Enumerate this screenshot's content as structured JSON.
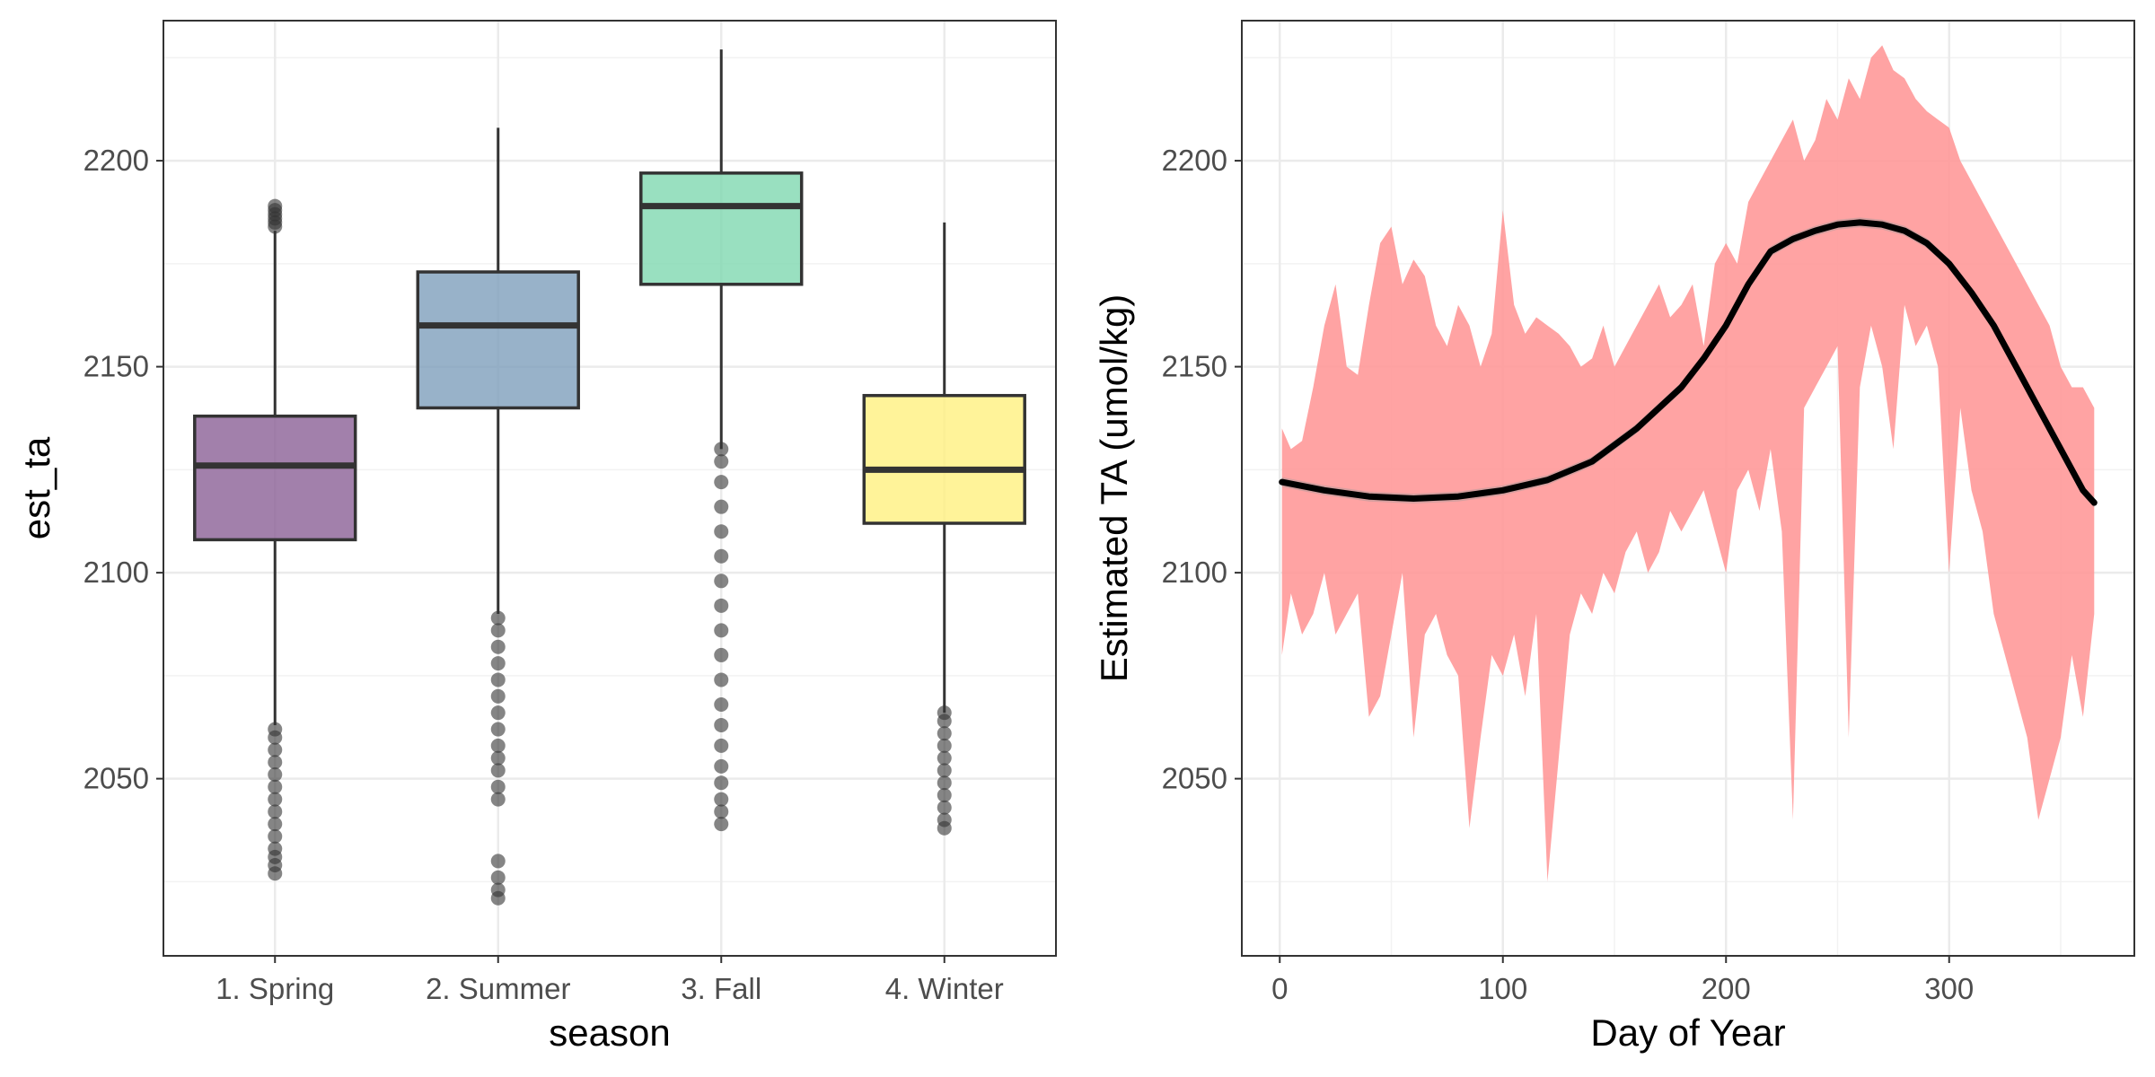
{
  "chart_data": [
    {
      "type": "boxplot",
      "xlabel": "season",
      "ylabel": "est_ta",
      "ylim": [
        2007,
        2234
      ],
      "yticks": [
        2050,
        2100,
        2150,
        2200
      ],
      "grid": true,
      "categories": [
        "1. Spring",
        "2. Summer",
        "3. Fall",
        "4. Winter"
      ],
      "fill_colors": [
        "#8b6096",
        "#7e9fbb",
        "#80d8b0",
        "#fff080"
      ],
      "boxes": [
        {
          "category": "1. Spring",
          "whisker_low": 2063,
          "q1": 2108,
          "median": 2126,
          "q3": 2138,
          "whisker_high": 2183,
          "outliers_high": [
            2184,
            2185,
            2186,
            2187,
            2188,
            2189
          ],
          "outliers_low": [
            2027,
            2029,
            2031,
            2033,
            2036,
            2039,
            2042,
            2045,
            2048,
            2051,
            2054,
            2057,
            2060,
            2062
          ]
        },
        {
          "category": "2. Summer",
          "whisker_low": 2090,
          "q1": 2140,
          "median": 2160,
          "q3": 2173,
          "whisker_high": 2208,
          "outliers_low": [
            2021,
            2023,
            2026,
            2030,
            2045,
            2048,
            2052,
            2055,
            2058,
            2062,
            2066,
            2070,
            2074,
            2078,
            2082,
            2086,
            2089
          ]
        },
        {
          "category": "3. Fall",
          "whisker_low": 2130,
          "q1": 2170,
          "median": 2189,
          "q3": 2197,
          "whisker_high": 2227,
          "outliers_low": [
            2039,
            2042,
            2045,
            2049,
            2053,
            2058,
            2063,
            2068,
            2074,
            2080,
            2086,
            2092,
            2098,
            2104,
            2110,
            2116,
            2122,
            2127,
            2130
          ]
        },
        {
          "category": "4. Winter",
          "whisker_low": 2066,
          "q1": 2112,
          "median": 2125,
          "q3": 2143,
          "whisker_high": 2185,
          "outliers_low": [
            2038,
            2040,
            2043,
            2046,
            2049,
            2052,
            2055,
            2058,
            2061,
            2064,
            2066
          ]
        }
      ]
    },
    {
      "type": "area",
      "xlabel": "Day of Year",
      "ylabel": "Estimated TA (umol/kg)",
      "xlim": [
        -17,
        383
      ],
      "ylim": [
        2007,
        2234
      ],
      "xticks": [
        0,
        100,
        200,
        300
      ],
      "yticks": [
        2050,
        2100,
        2150,
        2200
      ],
      "grid": true,
      "ribbon_color": "#ff9999",
      "line_color": "#000000",
      "ribbon": {
        "x": [
          1,
          5,
          10,
          15,
          20,
          25,
          30,
          35,
          40,
          45,
          50,
          55,
          60,
          65,
          70,
          75,
          80,
          85,
          90,
          95,
          100,
          105,
          110,
          115,
          120,
          125,
          130,
          135,
          140,
          145,
          150,
          155,
          160,
          165,
          170,
          175,
          180,
          185,
          190,
          195,
          200,
          205,
          210,
          215,
          220,
          225,
          230,
          235,
          240,
          245,
          250,
          255,
          260,
          265,
          270,
          275,
          280,
          285,
          290,
          295,
          300,
          305,
          310,
          315,
          320,
          325,
          330,
          335,
          340,
          345,
          350,
          355,
          360,
          365
        ],
        "upper": [
          2135,
          2130,
          2132,
          2145,
          2160,
          2170,
          2150,
          2148,
          2165,
          2180,
          2184,
          2170,
          2176,
          2172,
          2160,
          2155,
          2165,
          2160,
          2150,
          2158,
          2188,
          2165,
          2158,
          2162,
          2160,
          2158,
          2155,
          2150,
          2152,
          2160,
          2150,
          2155,
          2160,
          2165,
          2170,
          2162,
          2165,
          2170,
          2155,
          2175,
          2180,
          2175,
          2190,
          2195,
          2200,
          2205,
          2210,
          2200,
          2205,
          2215,
          2210,
          2220,
          2215,
          2225,
          2228,
          2222,
          2220,
          2215,
          2212,
          2210,
          2208,
          2200,
          2195,
          2190,
          2185,
          2180,
          2175,
          2170,
          2165,
          2160,
          2150,
          2145,
          2145,
          2140
        ],
        "lower": [
          2080,
          2095,
          2085,
          2090,
          2100,
          2085,
          2090,
          2095,
          2065,
          2070,
          2085,
          2100,
          2060,
          2085,
          2090,
          2080,
          2075,
          2038,
          2060,
          2080,
          2075,
          2085,
          2070,
          2090,
          2025,
          2055,
          2085,
          2095,
          2090,
          2100,
          2095,
          2105,
          2110,
          2100,
          2105,
          2115,
          2110,
          2115,
          2120,
          2110,
          2100,
          2120,
          2125,
          2115,
          2130,
          2110,
          2040,
          2140,
          2145,
          2150,
          2155,
          2060,
          2145,
          2160,
          2150,
          2130,
          2165,
          2155,
          2160,
          2150,
          2100,
          2140,
          2120,
          2110,
          2090,
          2080,
          2070,
          2060,
          2040,
          2050,
          2060,
          2080,
          2065,
          2090
        ]
      },
      "smooth": {
        "x": [
          1,
          20,
          40,
          60,
          80,
          100,
          120,
          140,
          160,
          180,
          190,
          200,
          210,
          220,
          230,
          240,
          250,
          260,
          270,
          280,
          290,
          300,
          310,
          320,
          330,
          340,
          350,
          360,
          365
        ],
        "y": [
          2122,
          2120,
          2118.5,
          2118,
          2118.5,
          2120,
          2122.5,
          2127,
          2135,
          2145,
          2152,
          2160,
          2170,
          2178,
          2181,
          2183,
          2184.5,
          2185,
          2184.5,
          2183,
          2180,
          2175,
          2168,
          2160,
          2150,
          2140,
          2130,
          2120,
          2117
        ]
      }
    }
  ]
}
